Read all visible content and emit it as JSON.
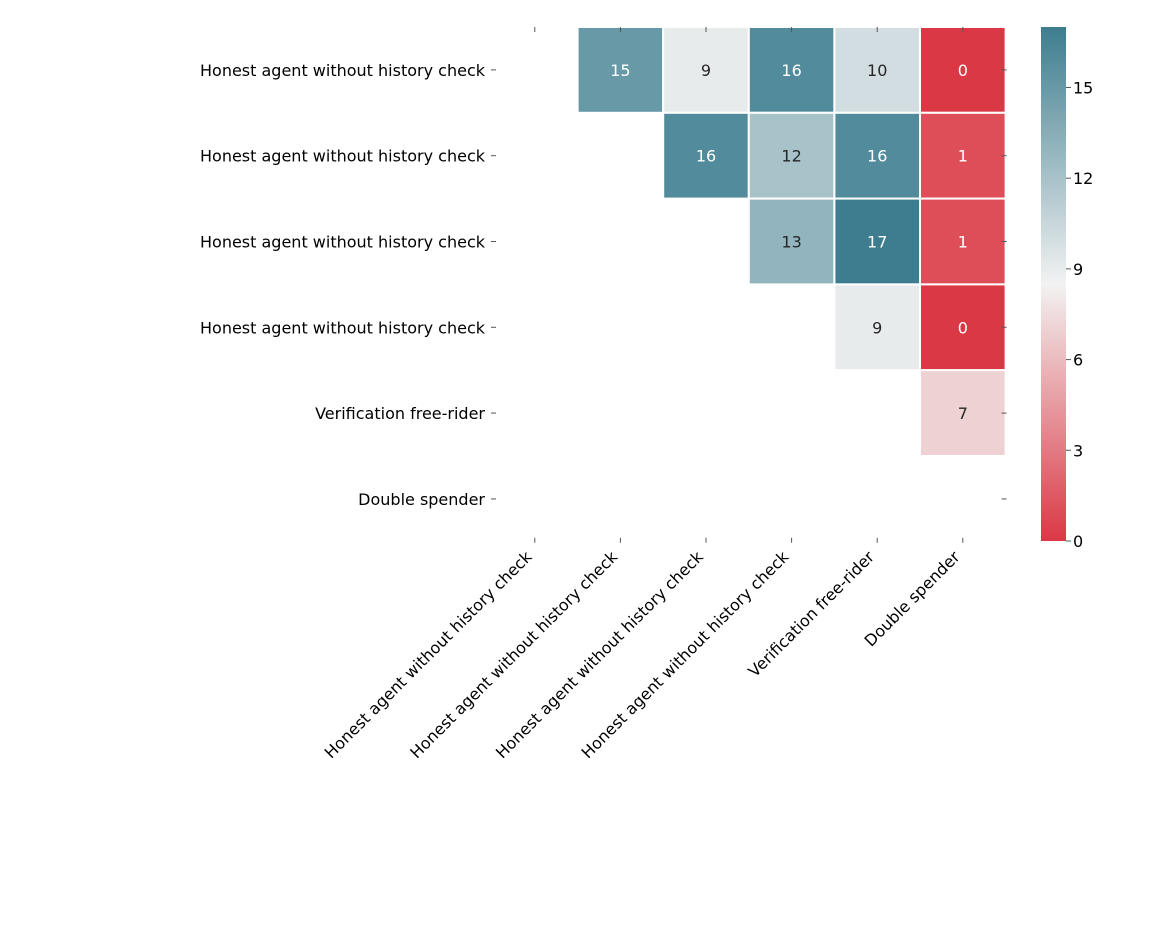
{
  "chart_data": {
    "type": "heatmap",
    "title": "",
    "xlabel": "",
    "ylabel": "",
    "row_labels": [
      "Honest agent without history check",
      "Honest agent without history check",
      "Honest agent without history check",
      "Honest agent without history check",
      "Verification free-rider",
      "Double spender"
    ],
    "col_labels": [
      "Honest agent without history check",
      "Honest agent without history check",
      "Honest agent without history check",
      "Honest agent without history check",
      "Verification free-rider",
      "Double spender"
    ],
    "values": [
      [
        null,
        15,
        9,
        16,
        10,
        0
      ],
      [
        null,
        null,
        16,
        12,
        16,
        1
      ],
      [
        null,
        null,
        null,
        13,
        17,
        1
      ],
      [
        null,
        null,
        null,
        null,
        9,
        0
      ],
      [
        null,
        null,
        null,
        null,
        null,
        7
      ],
      [
        null,
        null,
        null,
        null,
        null,
        null
      ]
    ],
    "colorbar": {
      "min": 0,
      "max": 17,
      "ticks": [
        0,
        3,
        6,
        9,
        12,
        15
      ],
      "colors": {
        "low": "#da3844",
        "mid": "#f2f2f2",
        "high": "#3d7d8f"
      }
    },
    "annotations": "cell values shown",
    "grid": false,
    "legend": "colorbar right"
  }
}
